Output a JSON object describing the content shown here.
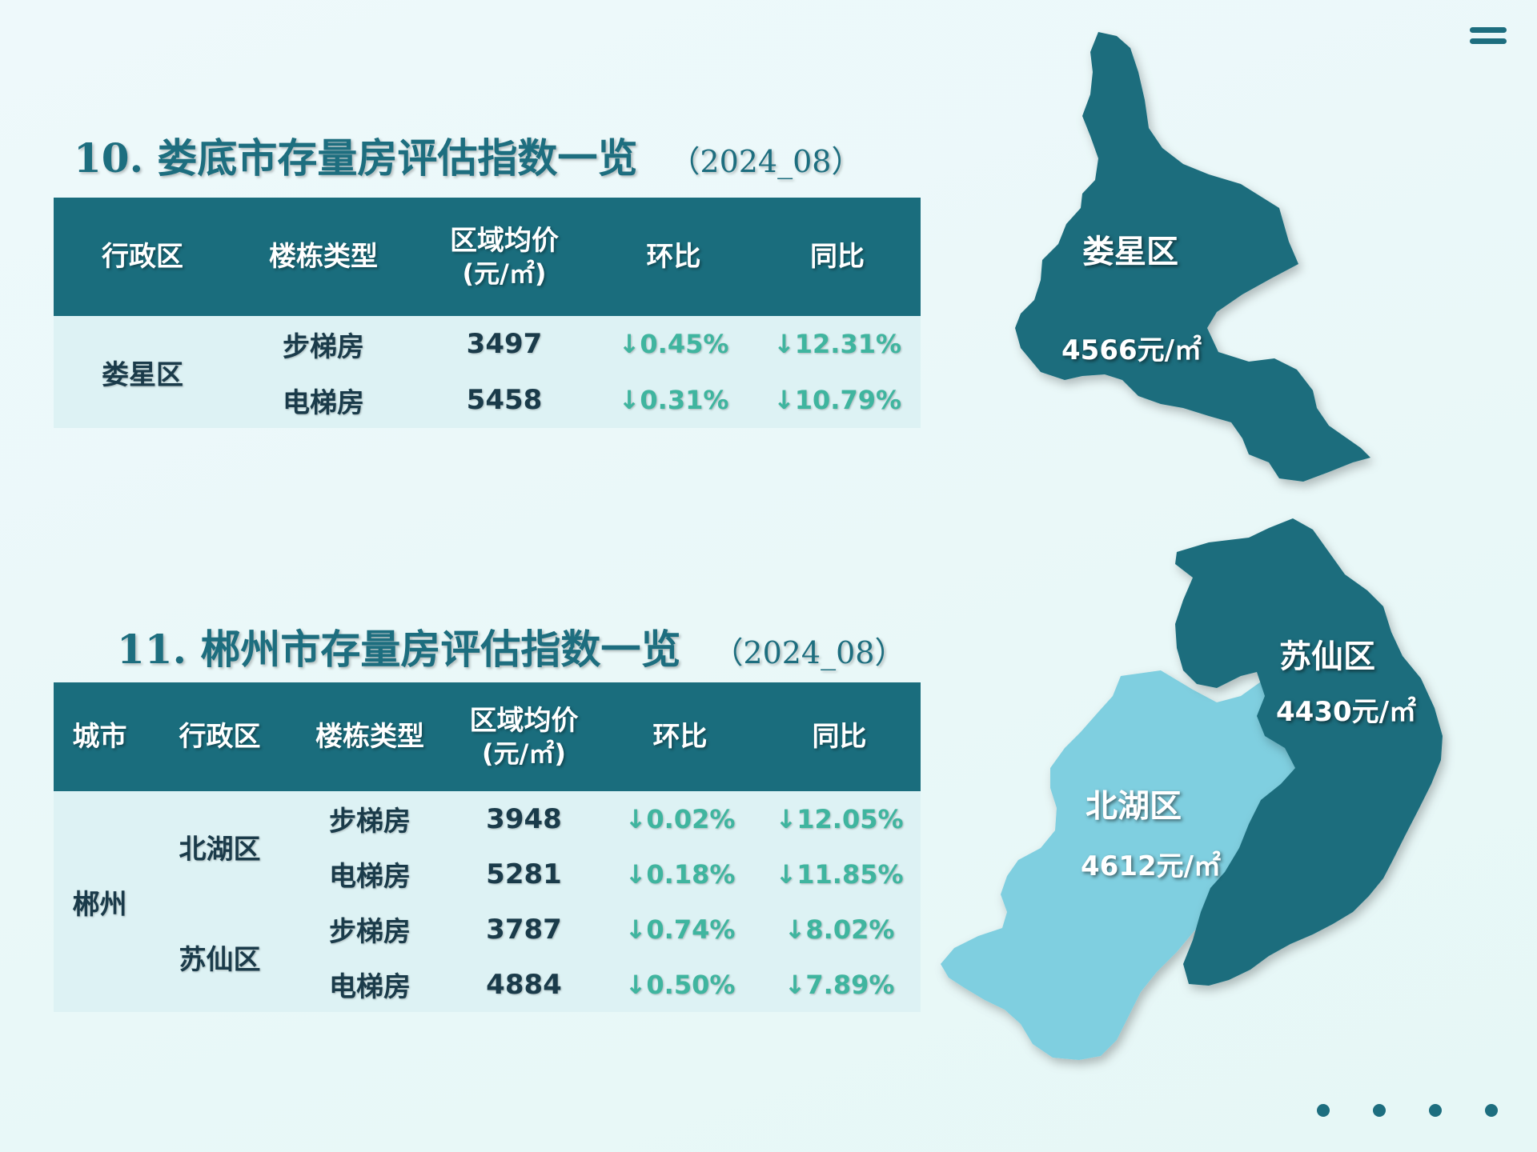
{
  "section1": {
    "title": "10. 娄底市存量房评估指数一览",
    "year": "（2024_08）",
    "headers": [
      "行政区",
      "楼栋类型",
      "区域均价",
      "(元/㎡)",
      "环比",
      "同比"
    ],
    "district": "娄星区",
    "rows": [
      {
        "type": "步梯房",
        "price": "3497",
        "mom": "↓0.45%",
        "yoy": "↓12.31%"
      },
      {
        "type": "电梯房",
        "price": "5458",
        "mom": "↓0.31%",
        "yoy": "↓10.79%"
      }
    ]
  },
  "section2": {
    "title": "11. 郴州市存量房评估指数一览",
    "year": "（2024_08）",
    "headers": [
      "城市",
      "行政区",
      "楼栋类型",
      "区域均价",
      "(元/㎡)",
      "环比",
      "同比"
    ],
    "city": "郴州",
    "districts": [
      "北湖区",
      "苏仙区"
    ],
    "rows": [
      {
        "type": "步梯房",
        "price": "3948",
        "mom": "↓0.02%",
        "yoy": "↓12.05%"
      },
      {
        "type": "电梯房",
        "price": "5281",
        "mom": "↓0.18%",
        "yoy": "↓11.85%"
      },
      {
        "type": "步梯房",
        "price": "3787",
        "mom": "↓0.74%",
        "yoy": "↓8.02%"
      },
      {
        "type": "电梯房",
        "price": "4884",
        "mom": "↓0.50%",
        "yoy": "↓7.89%"
      }
    ]
  },
  "map": {
    "louxing": {
      "name": "娄星区",
      "price": "4566元/㎡"
    },
    "suxian": {
      "name": "苏仙区",
      "price": "4430元/㎡"
    },
    "beihu": {
      "name": "北湖区",
      "price": "4612元/㎡"
    },
    "colors": {
      "dark": "#1a6d7d",
      "light": "#7fcfe0"
    }
  },
  "icons": {
    "menu": "menu-icon",
    "pagination": "pagination-dots"
  }
}
